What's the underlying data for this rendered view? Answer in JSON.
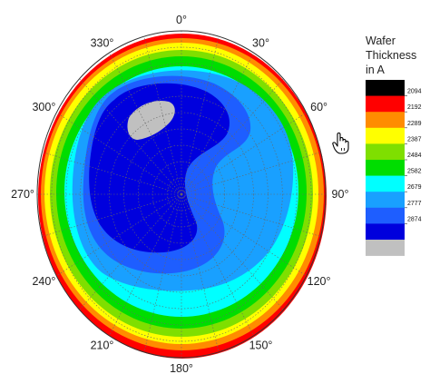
{
  "chart_data": {
    "type": "polar-contour",
    "angle_labels": [
      "0°",
      "30°",
      "60°",
      "90°",
      "120°",
      "150°",
      "180°",
      "210°",
      "240°",
      "270°",
      "300°",
      "330°"
    ],
    "angle_values": [
      0,
      30,
      60,
      90,
      120,
      150,
      180,
      210,
      240,
      270,
      300,
      330
    ],
    "legend": {
      "title_lines": [
        "Wafer",
        "Thickness",
        "in A"
      ],
      "levels": [
        "2094",
        "2192",
        "2289",
        "2387",
        "2484",
        "2582",
        "2679",
        "2777",
        "2874",
        ""
      ],
      "colors": [
        "#000000",
        "#ff0000",
        "#ff8c00",
        "#ffff00",
        "#7fdf00",
        "#00dd00",
        "#00ffff",
        "#19a0ff",
        "#1e5eff",
        "#0000dd",
        "#c0c0c0"
      ]
    },
    "grid": true,
    "grid_style": "dotted",
    "radial_rings": 10
  },
  "icons": {
    "cursor": "hand-pointer-icon"
  }
}
